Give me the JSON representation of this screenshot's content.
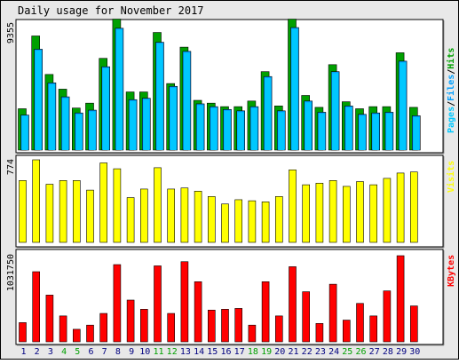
{
  "title": "Daily usage for November 2017",
  "colors": {
    "background": "#e8e8e8",
    "panel": "#ffffff",
    "hits": "#00a000",
    "files": "#00a0ff",
    "pages": "#00c8ff",
    "visits": "#ffff00",
    "kbytes": "#ff0000",
    "weekday_label": "#000080",
    "weekend_label": "#00a000"
  },
  "chart_data": [
    {
      "type": "bar",
      "panel": "hits_files_pages",
      "ylabel_max": "9355",
      "ylim": [
        0,
        9355
      ],
      "legend": [
        {
          "key": "pages",
          "text": "Pages"
        },
        {
          "key": "files",
          "text": "Files"
        },
        {
          "key": "hits",
          "text": "Hits"
        }
      ],
      "legend_separator": "/",
      "categories": [
        "1",
        "2",
        "3",
        "4",
        "5",
        "6",
        "7",
        "8",
        "9",
        "10",
        "11",
        "12",
        "13",
        "14",
        "15",
        "16",
        "17",
        "18",
        "19",
        "20",
        "21",
        "22",
        "23",
        "24",
        "25",
        "26",
        "27",
        "28",
        "29",
        "30"
      ],
      "series": [
        {
          "key": "hits",
          "values": [
            2950,
            8150,
            5400,
            4350,
            3000,
            3350,
            6550,
            9355,
            4150,
            4150,
            8400,
            4750,
            7350,
            3550,
            3350,
            3100,
            3100,
            3500,
            5600,
            3150,
            9355,
            3900,
            3050,
            6100,
            3450,
            2950,
            3100,
            3100,
            6950,
            3050
          ]
        },
        {
          "key": "files",
          "values": [
            2500,
            7200,
            4800,
            3800,
            2650,
            2850,
            5950,
            8700,
            3600,
            3700,
            7700,
            4550,
            7050,
            3300,
            3100,
            2900,
            2800,
            3100,
            5250,
            2800,
            8750,
            3500,
            2700,
            5600,
            3150,
            2550,
            2650,
            2700,
            6350,
            2450
          ]
        },
        {
          "key": "pages",
          "values": [
            2450,
            7100,
            4700,
            3700,
            2550,
            2750,
            5850,
            8600,
            3500,
            3600,
            7600,
            4450,
            6950,
            3200,
            3000,
            2800,
            2700,
            3000,
            5150,
            2700,
            8650,
            3400,
            2600,
            5500,
            3050,
            2450,
            2550,
            2600,
            6250,
            2350
          ]
        }
      ]
    },
    {
      "type": "bar",
      "panel": "visits",
      "ylabel_max": "774",
      "ylim": [
        0,
        774
      ],
      "legend": [
        {
          "key": "visits",
          "text": "Visits"
        }
      ],
      "categories": [
        "1",
        "2",
        "3",
        "4",
        "5",
        "6",
        "7",
        "8",
        "9",
        "10",
        "11",
        "12",
        "13",
        "14",
        "15",
        "16",
        "17",
        "18",
        "19",
        "20",
        "21",
        "22",
        "23",
        "24",
        "25",
        "26",
        "27",
        "28",
        "29",
        "30"
      ],
      "series": [
        {
          "key": "visits",
          "values": [
            580,
            774,
            545,
            580,
            580,
            490,
            745,
            690,
            420,
            500,
            700,
            500,
            510,
            480,
            430,
            360,
            400,
            390,
            380,
            430,
            680,
            540,
            555,
            580,
            525,
            570,
            540,
            600,
            650,
            660
          ]
        }
      ]
    },
    {
      "type": "bar",
      "panel": "kbytes",
      "ylabel_max": "1031750",
      "ylim": [
        0,
        1031750
      ],
      "legend": [
        {
          "key": "kbytes",
          "text": "KBytes"
        }
      ],
      "categories": [
        "1",
        "2",
        "3",
        "4",
        "5",
        "6",
        "7",
        "8",
        "9",
        "10",
        "11",
        "12",
        "13",
        "14",
        "15",
        "16",
        "17",
        "18",
        "19",
        "20",
        "21",
        "22",
        "23",
        "24",
        "25",
        "26",
        "27",
        "28",
        "29",
        "30"
      ],
      "weekend_days": [
        "4",
        "5",
        "11",
        "12",
        "18",
        "19",
        "25",
        "26"
      ],
      "series": [
        {
          "key": "kbytes",
          "values": [
            230000,
            840000,
            560000,
            310000,
            150000,
            200000,
            340000,
            925000,
            500000,
            390000,
            910000,
            340000,
            960000,
            720000,
            380000,
            390000,
            400000,
            200000,
            720000,
            310000,
            900000,
            600000,
            220000,
            690000,
            260000,
            460000,
            310000,
            610000,
            1031750,
            430000
          ]
        }
      ]
    }
  ]
}
